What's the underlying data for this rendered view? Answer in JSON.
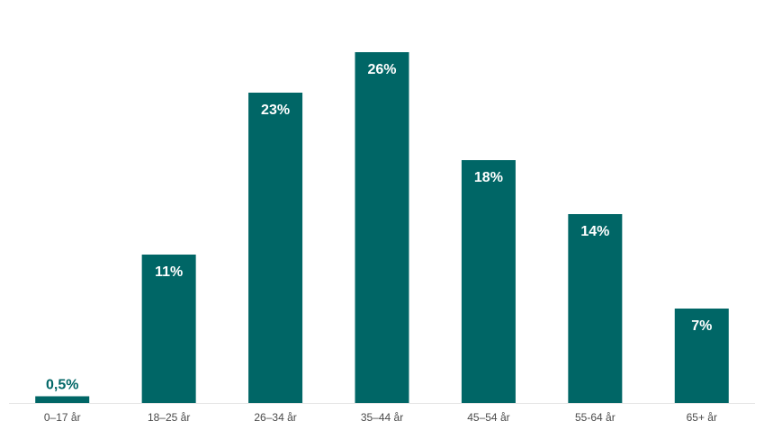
{
  "chart_data": {
    "type": "bar",
    "categories": [
      "0–17 år",
      "18–25 år",
      "26–34 år",
      "35–44 år",
      "45–54 år",
      "55-64 år",
      "65+ år"
    ],
    "values": [
      0.5,
      11,
      23,
      26,
      18,
      14,
      7
    ],
    "data_labels": [
      "0,5%",
      "11%",
      "23%",
      "26%",
      "18%",
      "14%",
      "7%"
    ],
    "title": "",
    "xlabel": "",
    "ylabel": "",
    "ylim": [
      0,
      26
    ],
    "grid": false,
    "legend": "none",
    "colors": {
      "bar": "#006666",
      "label_inside": "#ffffff",
      "label_outside": "#006666",
      "axis_line": "#e6e6e6"
    }
  }
}
